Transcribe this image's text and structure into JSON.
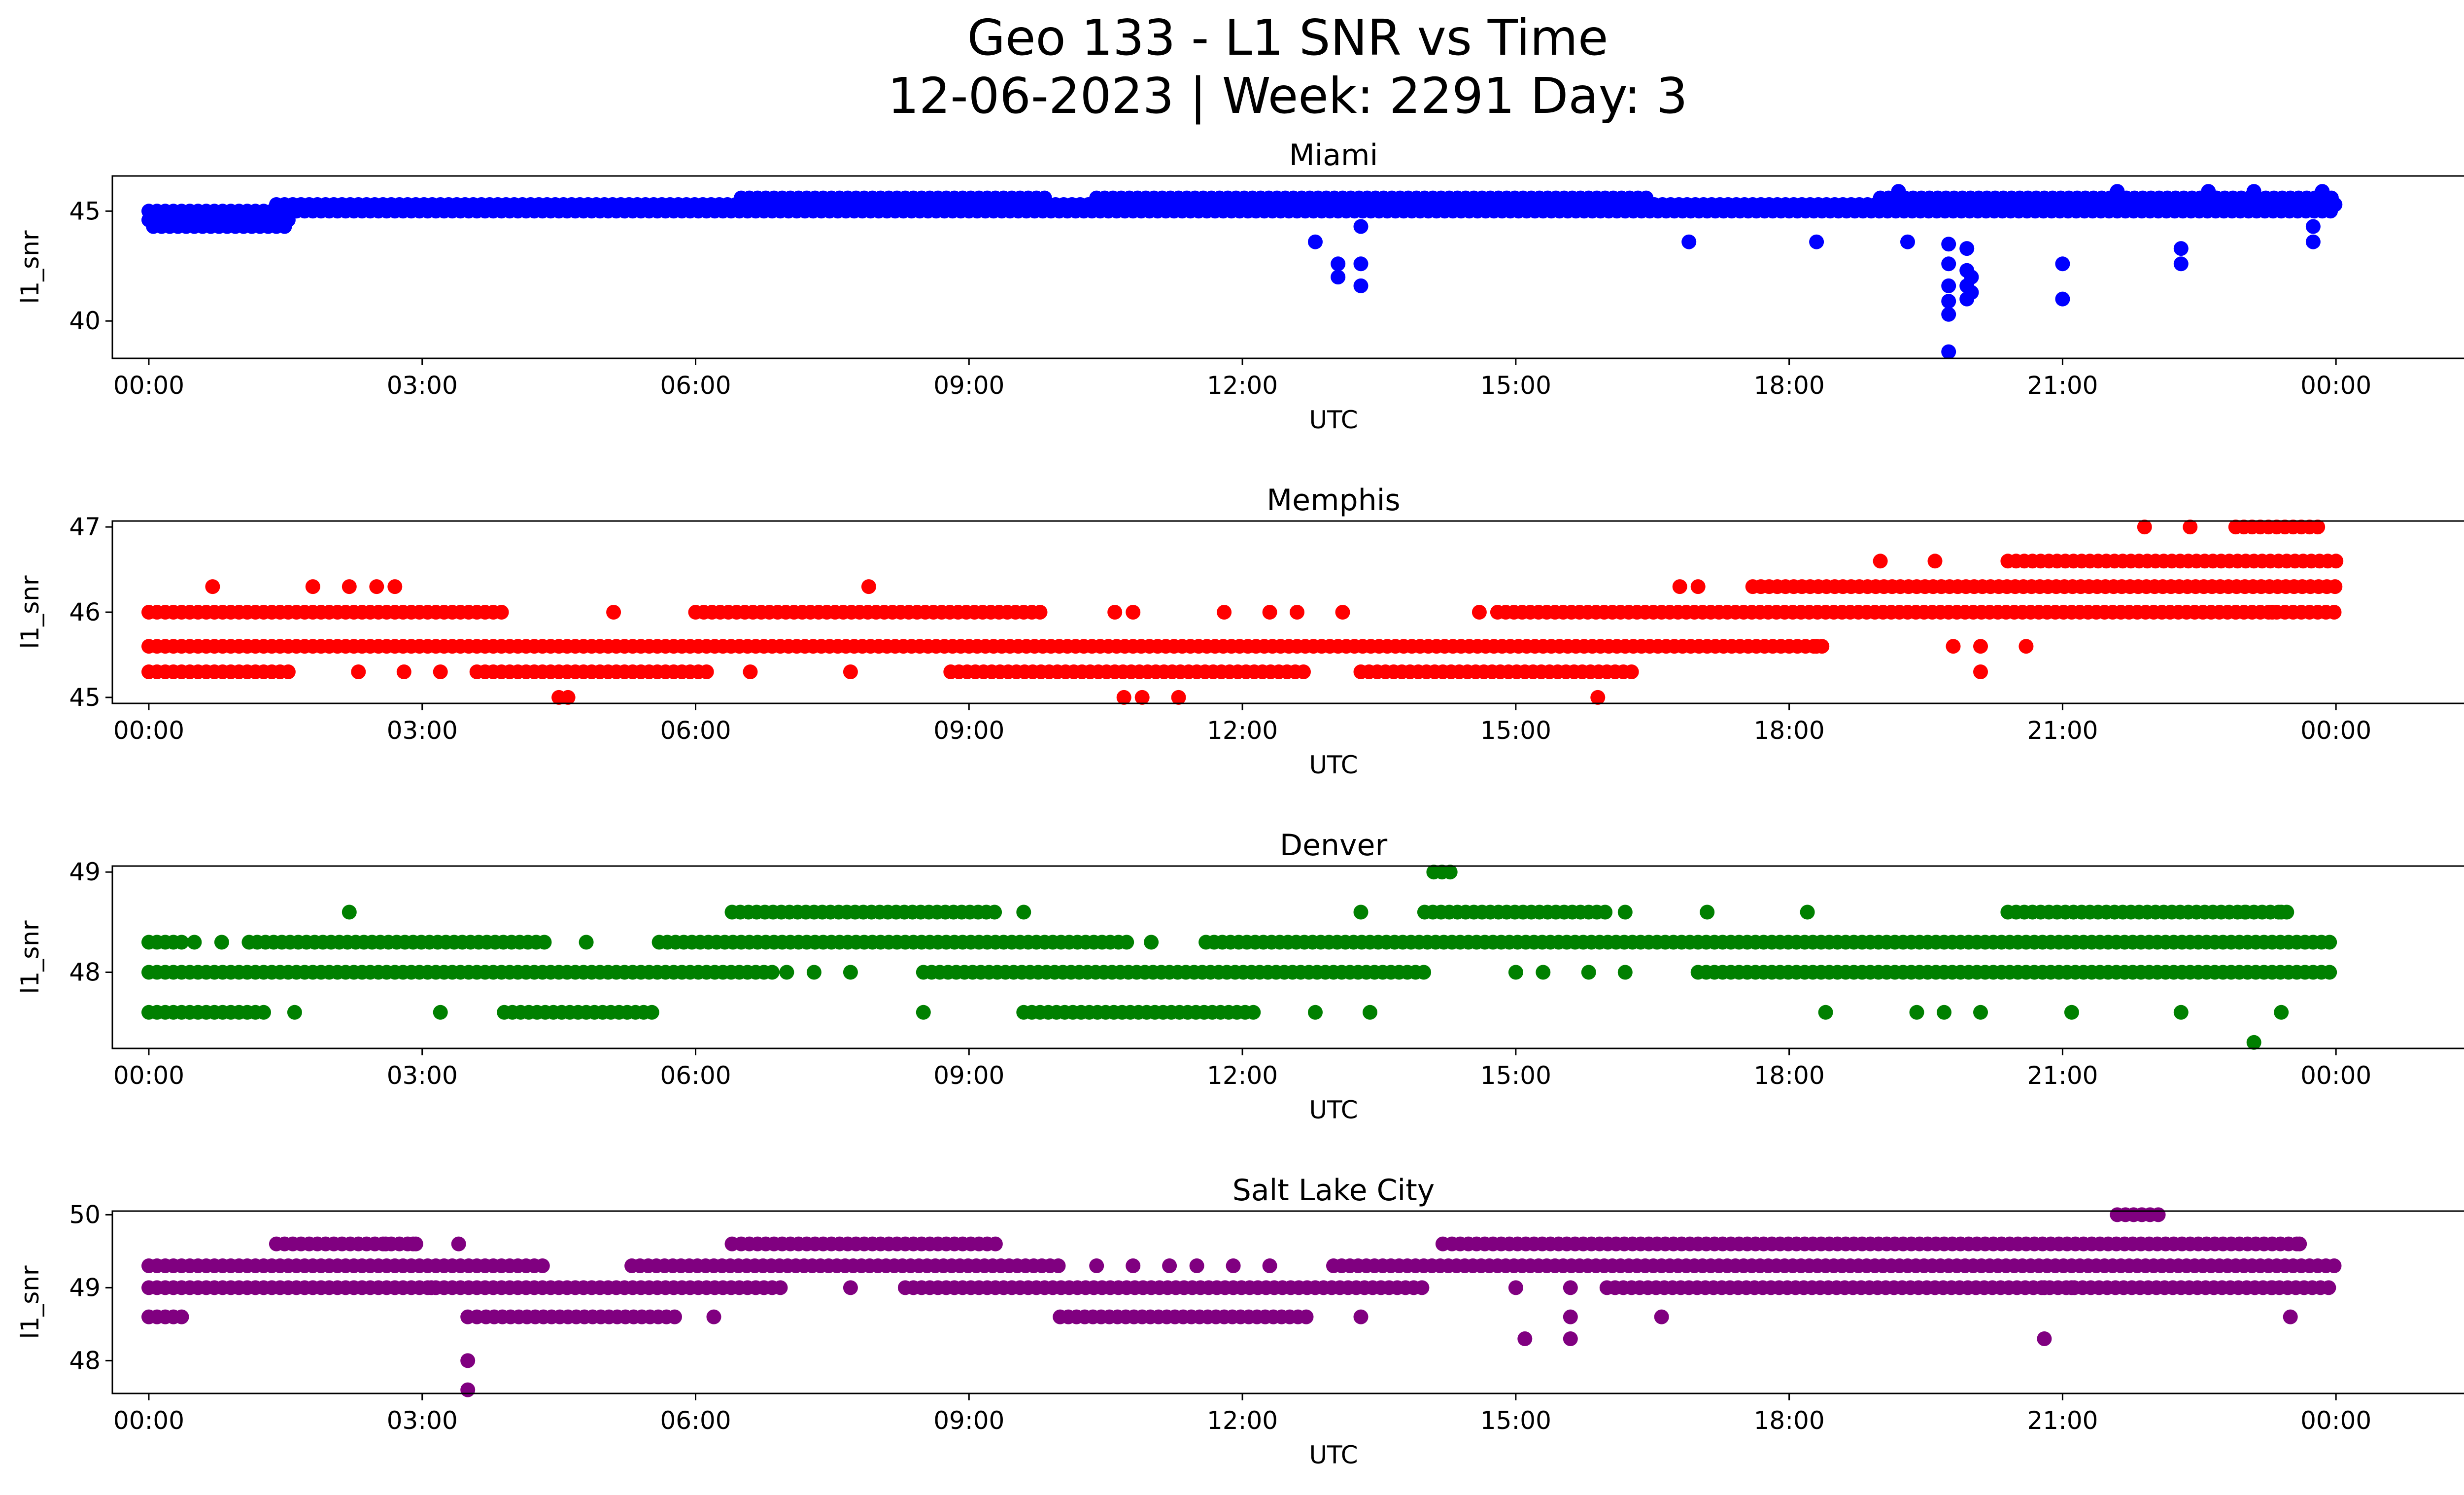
{
  "figure": {
    "title_line1": "Geo 133 - L1 SNR vs Time",
    "title_line2": "12-06-2023 | Week: 2291 Day: 3"
  },
  "chart_data": [
    {
      "type": "scatter",
      "title": "Miami",
      "xlabel": "UTC",
      "ylabel": "l1_snr",
      "color": "#0000ff",
      "xlim_hours": [
        -0.4,
        26.4
      ],
      "ylim": [
        38.3,
        46.6
      ],
      "xticks": [
        "00:00",
        "03:00",
        "06:00",
        "09:00",
        "12:00",
        "15:00",
        "18:00",
        "21:00",
        "00:00"
      ],
      "yticks": [
        40,
        45
      ],
      "levels": [
        {
          "y": 44.3,
          "ranges": [
            [
              0.05,
              1.5
            ]
          ]
        },
        {
          "y": 44.6,
          "ranges": [
            [
              0.0,
              1.6
            ]
          ]
        },
        {
          "y": 45.0,
          "ranges": [
            [
              0.0,
              24.0
            ]
          ]
        },
        {
          "y": 45.3,
          "ranges": [
            [
              1.4,
              24.0
            ]
          ]
        },
        {
          "y": 45.6,
          "ranges": [
            [
              6.5,
              9.9
            ],
            [
              10.4,
              16.5
            ],
            [
              19.0,
              24.0
            ]
          ]
        }
      ],
      "points": [
        [
          12.8,
          43.6
        ],
        [
          13.05,
          42.6
        ],
        [
          13.05,
          42.0
        ],
        [
          13.3,
          42.6
        ],
        [
          13.3,
          41.6
        ],
        [
          13.3,
          44.3
        ],
        [
          16.9,
          43.6
        ],
        [
          18.3,
          43.6
        ],
        [
          19.3,
          43.6
        ],
        [
          19.75,
          43.5
        ],
        [
          19.75,
          42.6
        ],
        [
          19.75,
          41.6
        ],
        [
          19.75,
          40.9
        ],
        [
          19.75,
          40.3
        ],
        [
          19.75,
          38.6
        ],
        [
          19.95,
          43.3
        ],
        [
          19.95,
          42.3
        ],
        [
          19.95,
          41.6
        ],
        [
          19.95,
          41.0
        ],
        [
          20.0,
          42.0
        ],
        [
          20.0,
          41.3
        ],
        [
          21.0,
          42.6
        ],
        [
          21.0,
          41.0
        ],
        [
          22.3,
          43.3
        ],
        [
          22.3,
          42.6
        ],
        [
          23.75,
          43.6
        ],
        [
          23.75,
          44.3
        ],
        [
          23.85,
          45.9
        ],
        [
          22.6,
          45.9
        ],
        [
          23.1,
          45.9
        ],
        [
          19.2,
          45.9
        ],
        [
          21.6,
          45.9
        ]
      ]
    },
    {
      "type": "scatter",
      "title": "Memphis",
      "xlabel": "UTC",
      "ylabel": "l1_snr",
      "color": "#ff0000",
      "xlim_hours": [
        -0.4,
        26.4
      ],
      "ylim": [
        44.93,
        47.07
      ],
      "xticks": [
        "00:00",
        "03:00",
        "06:00",
        "09:00",
        "12:00",
        "15:00",
        "18:00",
        "21:00",
        "00:00"
      ],
      "yticks": [
        45,
        46,
        47
      ],
      "levels": [
        {
          "y": 45.3,
          "ranges": [
            [
              0.0,
              1.6
            ],
            [
              3.6,
              6.2
            ],
            [
              8.8,
              12.7
            ],
            [
              13.3,
              16.3
            ]
          ]
        },
        {
          "y": 45.6,
          "ranges": [
            [
              0.0,
              18.4
            ]
          ]
        },
        {
          "y": 46.0,
          "ranges": [
            [
              0.0,
              3.9
            ],
            [
              6.0,
              9.8
            ],
            [
              14.8,
              24.0
            ]
          ]
        },
        {
          "y": 46.3,
          "ranges": [
            [
              17.6,
              24.0
            ]
          ]
        },
        {
          "y": 46.6,
          "ranges": [
            [
              20.4,
              24.0
            ]
          ]
        },
        {
          "y": 47.0,
          "ranges": [
            [
              22.9,
              23.8
            ]
          ]
        }
      ],
      "points": [
        [
          0.7,
          46.3
        ],
        [
          1.8,
          46.3
        ],
        [
          2.2,
          46.3
        ],
        [
          2.5,
          46.3
        ],
        [
          2.7,
          46.3
        ],
        [
          2.3,
          45.3
        ],
        [
          2.8,
          45.3
        ],
        [
          3.2,
          45.3
        ],
        [
          4.5,
          45.0
        ],
        [
          4.6,
          45.0
        ],
        [
          5.1,
          46.0
        ],
        [
          6.6,
          45.3
        ],
        [
          7.7,
          45.3
        ],
        [
          7.9,
          46.3
        ],
        [
          10.7,
          45.0
        ],
        [
          10.9,
          45.0
        ],
        [
          11.3,
          45.0
        ],
        [
          10.6,
          46.0
        ],
        [
          10.8,
          46.0
        ],
        [
          11.8,
          46.0
        ],
        [
          12.3,
          46.0
        ],
        [
          12.6,
          46.0
        ],
        [
          13.1,
          46.0
        ],
        [
          14.6,
          46.0
        ],
        [
          15.9,
          45.0
        ],
        [
          16.8,
          46.3
        ],
        [
          17.0,
          46.3
        ],
        [
          18.3,
          45.6
        ],
        [
          19.0,
          46.6
        ],
        [
          19.6,
          46.6
        ],
        [
          21.9,
          47.0
        ],
        [
          22.4,
          47.0
        ],
        [
          22.9,
          46.0
        ],
        [
          23.3,
          46.0
        ],
        [
          20.1,
          45.3
        ],
        [
          20.1,
          45.6
        ],
        [
          19.8,
          45.6
        ],
        [
          20.6,
          45.6
        ]
      ]
    },
    {
      "type": "scatter",
      "title": "Denver",
      "xlabel": "UTC",
      "ylabel": "l1_snr",
      "color": "#008000",
      "xlim_hours": [
        -0.4,
        26.4
      ],
      "ylim": [
        47.24,
        49.06
      ],
      "xticks": [
        "00:00",
        "03:00",
        "06:00",
        "09:00",
        "12:00",
        "15:00",
        "18:00",
        "21:00",
        "00:00"
      ],
      "yticks": [
        48,
        49
      ],
      "levels": [
        {
          "y": 47.6,
          "ranges": [
            [
              0.0,
              1.3
            ],
            [
              3.9,
              5.6
            ],
            [
              9.6,
              12.2
            ]
          ]
        },
        {
          "y": 48.0,
          "ranges": [
            [
              0.0,
              6.9
            ],
            [
              8.5,
              14.0
            ],
            [
              17.0,
              24.0
            ]
          ]
        },
        {
          "y": 48.3,
          "ranges": [
            [
              0.0,
              0.4
            ],
            [
              1.1,
              4.4
            ],
            [
              5.6,
              10.8
            ],
            [
              11.6,
              24.0
            ]
          ]
        },
        {
          "y": 48.6,
          "ranges": [
            [
              6.4,
              9.3
            ],
            [
              14.0,
              16.0
            ],
            [
              20.4,
              23.5
            ]
          ]
        },
        {
          "y": 49.0,
          "ranges": [
            [
              14.1,
              14.3
            ]
          ]
        }
      ],
      "points": [
        [
          0.5,
          48.3
        ],
        [
          0.8,
          48.3
        ],
        [
          1.6,
          47.6
        ],
        [
          2.2,
          48.6
        ],
        [
          3.2,
          47.6
        ],
        [
          4.8,
          48.3
        ],
        [
          7.0,
          48.0
        ],
        [
          7.3,
          48.0
        ],
        [
          7.7,
          48.0
        ],
        [
          8.5,
          47.6
        ],
        [
          9.6,
          48.6
        ],
        [
          11.0,
          48.3
        ],
        [
          12.8,
          47.6
        ],
        [
          13.4,
          47.6
        ],
        [
          13.3,
          48.6
        ],
        [
          15.0,
          48.0
        ],
        [
          15.3,
          48.0
        ],
        [
          15.8,
          48.0
        ],
        [
          16.2,
          48.0
        ],
        [
          16.2,
          48.6
        ],
        [
          17.1,
          48.6
        ],
        [
          18.2,
          48.6
        ],
        [
          18.4,
          47.6
        ],
        [
          19.4,
          47.6
        ],
        [
          19.7,
          47.6
        ],
        [
          20.1,
          47.6
        ],
        [
          21.1,
          47.6
        ],
        [
          22.3,
          47.6
        ],
        [
          23.0,
          48.6
        ],
        [
          23.4,
          48.6
        ],
        [
          23.4,
          47.6
        ],
        [
          23.1,
          47.3
        ]
      ]
    },
    {
      "type": "scatter",
      "title": "Salt Lake City",
      "xlabel": "UTC",
      "ylabel": "l1_snr",
      "color": "#800080",
      "xlim_hours": [
        -0.4,
        26.4
      ],
      "ylim": [
        47.55,
        50.05
      ],
      "xticks": [
        "00:00",
        "03:00",
        "06:00",
        "09:00",
        "12:00",
        "15:00",
        "18:00",
        "21:00",
        "00:00"
      ],
      "yticks": [
        48,
        49,
        50
      ],
      "levels": [
        {
          "y": 48.6,
          "ranges": [
            [
              0.0,
              0.4
            ],
            [
              3.7,
              5.8
            ],
            [
              10.0,
              12.7
            ]
          ]
        },
        {
          "y": 49.0,
          "ranges": [
            [
              0.0,
              7.0
            ],
            [
              8.3,
              14.0
            ],
            [
              16.0,
              24.0
            ]
          ]
        },
        {
          "y": 49.3,
          "ranges": [
            [
              0.0,
              4.4
            ],
            [
              5.3,
              10.0
            ],
            [
              13.0,
              24.0
            ]
          ]
        },
        {
          "y": 49.6,
          "ranges": [
            [
              1.4,
              3.0
            ],
            [
              6.5,
              9.3
            ],
            [
              14.3,
              23.6
            ]
          ]
        },
        {
          "y": 50.0,
          "ranges": [
            [
              21.6,
              22.1
            ]
          ]
        }
      ],
      "points": [
        [
          2.6,
          49.6
        ],
        [
          2.9,
          49.6
        ],
        [
          3.4,
          49.6
        ],
        [
          3.5,
          48.6
        ],
        [
          3.5,
          48.0
        ],
        [
          3.5,
          47.6
        ],
        [
          3.1,
          49.0
        ],
        [
          3.6,
          48.6
        ],
        [
          6.2,
          48.6
        ],
        [
          6.4,
          49.6
        ],
        [
          7.7,
          49.0
        ],
        [
          10.4,
          49.3
        ],
        [
          10.8,
          49.3
        ],
        [
          11.2,
          49.3
        ],
        [
          11.5,
          49.3
        ],
        [
          11.9,
          49.3
        ],
        [
          12.3,
          49.3
        ],
        [
          13.3,
          48.6
        ],
        [
          14.2,
          49.6
        ],
        [
          15.0,
          49.0
        ],
        [
          15.1,
          48.3
        ],
        [
          15.6,
          48.3
        ],
        [
          15.6,
          48.6
        ],
        [
          15.6,
          49.0
        ],
        [
          16.6,
          48.6
        ],
        [
          20.8,
          48.3
        ],
        [
          20.8,
          49.0
        ],
        [
          21.1,
          49.0
        ],
        [
          23.3,
          49.0
        ],
        [
          23.5,
          48.6
        ],
        [
          23.6,
          49.6
        ]
      ]
    }
  ]
}
